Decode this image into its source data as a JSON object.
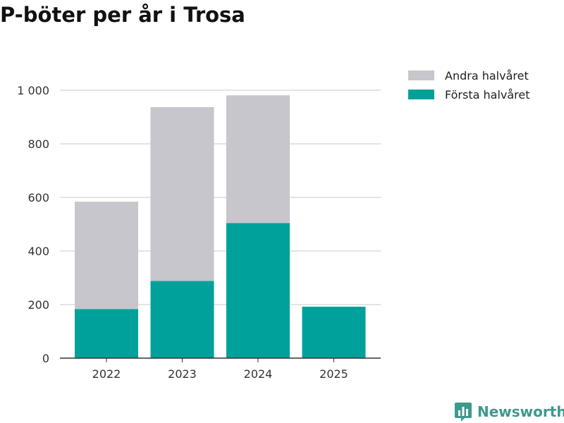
{
  "chart_data": {
    "type": "bar",
    "stacked": true,
    "title": "P-böter per år i Trosa",
    "categories": [
      "2022",
      "2023",
      "2024",
      "2025"
    ],
    "series": [
      {
        "name": "Första halvåret",
        "values": [
          183,
          288,
          504,
          192
        ],
        "color": "#00a19a"
      },
      {
        "name": "Andra halvåret",
        "values": [
          401,
          649,
          477,
          0
        ],
        "color": "#c6c6cc"
      }
    ],
    "legend": [
      "Andra halvåret",
      "Första halvåret"
    ],
    "ylim": [
      0,
      1000
    ],
    "yticks": [
      0,
      200,
      400,
      600,
      800,
      1000
    ],
    "ytick_labels": [
      "0",
      "200",
      "400",
      "600",
      "800",
      "1 000"
    ],
    "xlabel": "",
    "ylabel": "",
    "grid": true,
    "legend_position": "top-right"
  },
  "brand": {
    "name": "Newsworthy",
    "icon": "newsworthy-logo-icon",
    "color": "#3c9a8e"
  }
}
